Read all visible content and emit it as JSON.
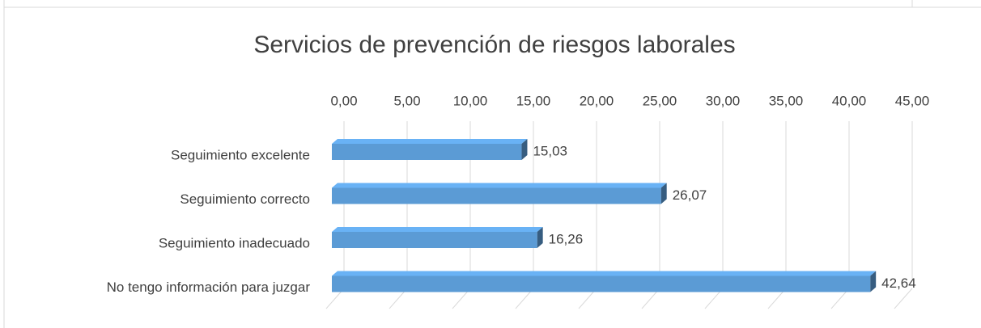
{
  "chart_data": {
    "type": "bar",
    "orientation": "horizontal",
    "title": "Servicios de prevención de riesgos laborales",
    "categories": [
      "Seguimiento excelente",
      "Seguimiento correcto",
      "Seguimiento inadecuado",
      "No tengo información para juzgar"
    ],
    "values": [
      15.03,
      26.07,
      16.26,
      42.64
    ],
    "value_labels": [
      "15,03",
      "26,07",
      "16,26",
      "42,64"
    ],
    "color": "#5b9bd5",
    "xlim": [
      0,
      45
    ],
    "xticks": [
      {
        "value": 0,
        "label": "0,00"
      },
      {
        "value": 5,
        "label": "5,00"
      },
      {
        "value": 10,
        "label": "10,00"
      },
      {
        "value": 15,
        "label": "15,00"
      },
      {
        "value": 20,
        "label": "20,00"
      },
      {
        "value": 25,
        "label": "25,00"
      },
      {
        "value": 30,
        "label": "30,00"
      },
      {
        "value": 35,
        "label": "35,00"
      },
      {
        "value": 40,
        "label": "40,00"
      },
      {
        "value": 45,
        "label": "45,00"
      }
    ],
    "grid": true
  }
}
